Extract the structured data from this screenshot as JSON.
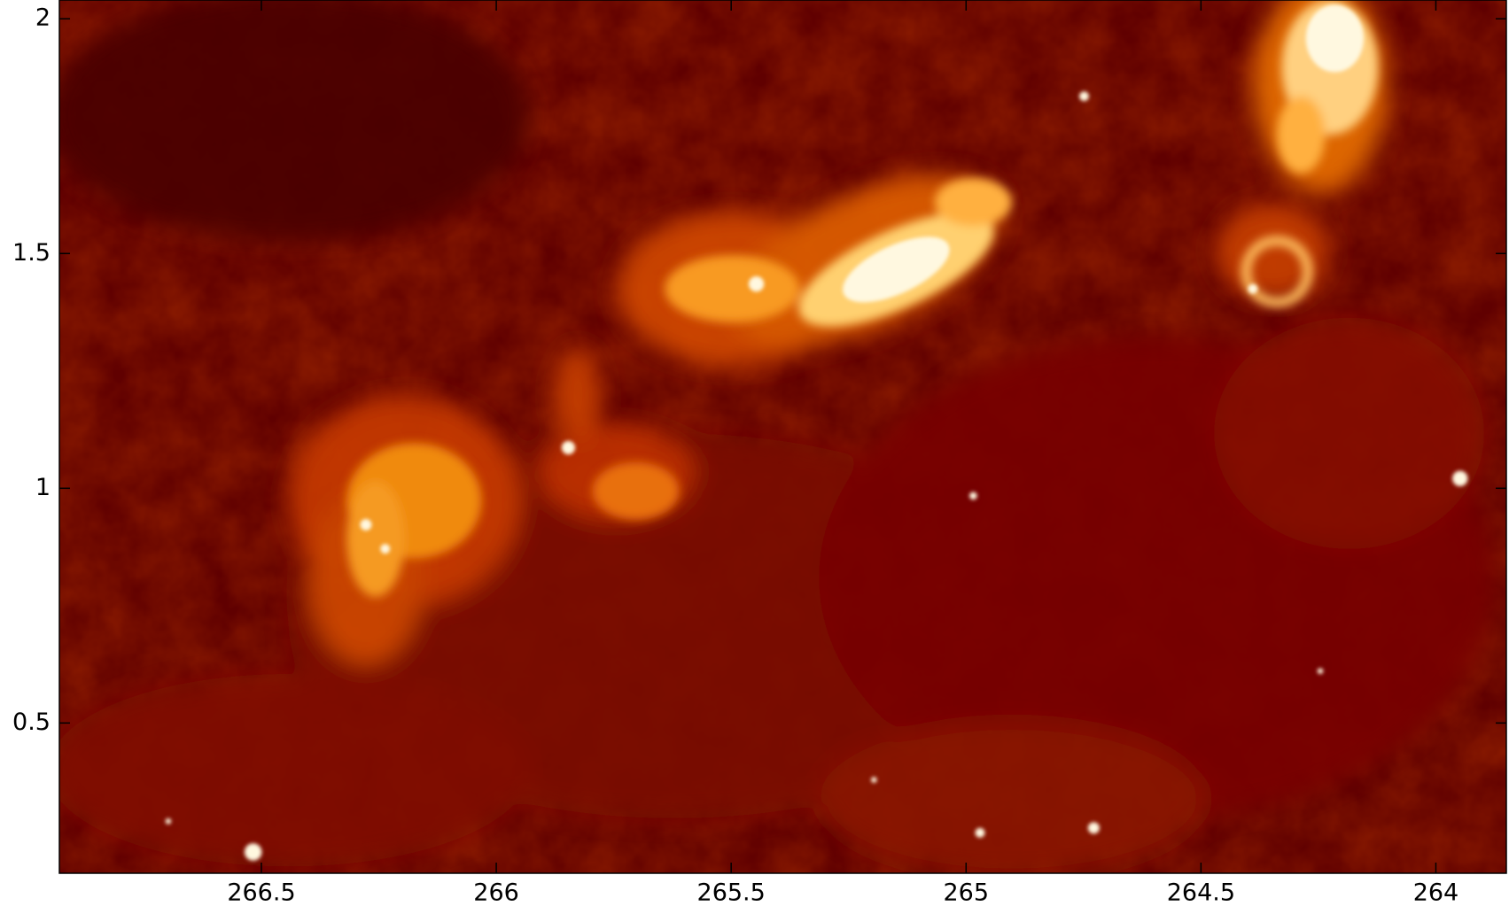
{
  "chart_data": {
    "type": "image",
    "xlim": [
      266.93,
      263.85
    ],
    "ylim": [
      0.18,
      2.04
    ],
    "xticks": [
      266.5,
      266,
      265.5,
      265,
      264.5,
      264
    ],
    "yticks": [
      0.5,
      1,
      1.5,
      2
    ]
  }
}
